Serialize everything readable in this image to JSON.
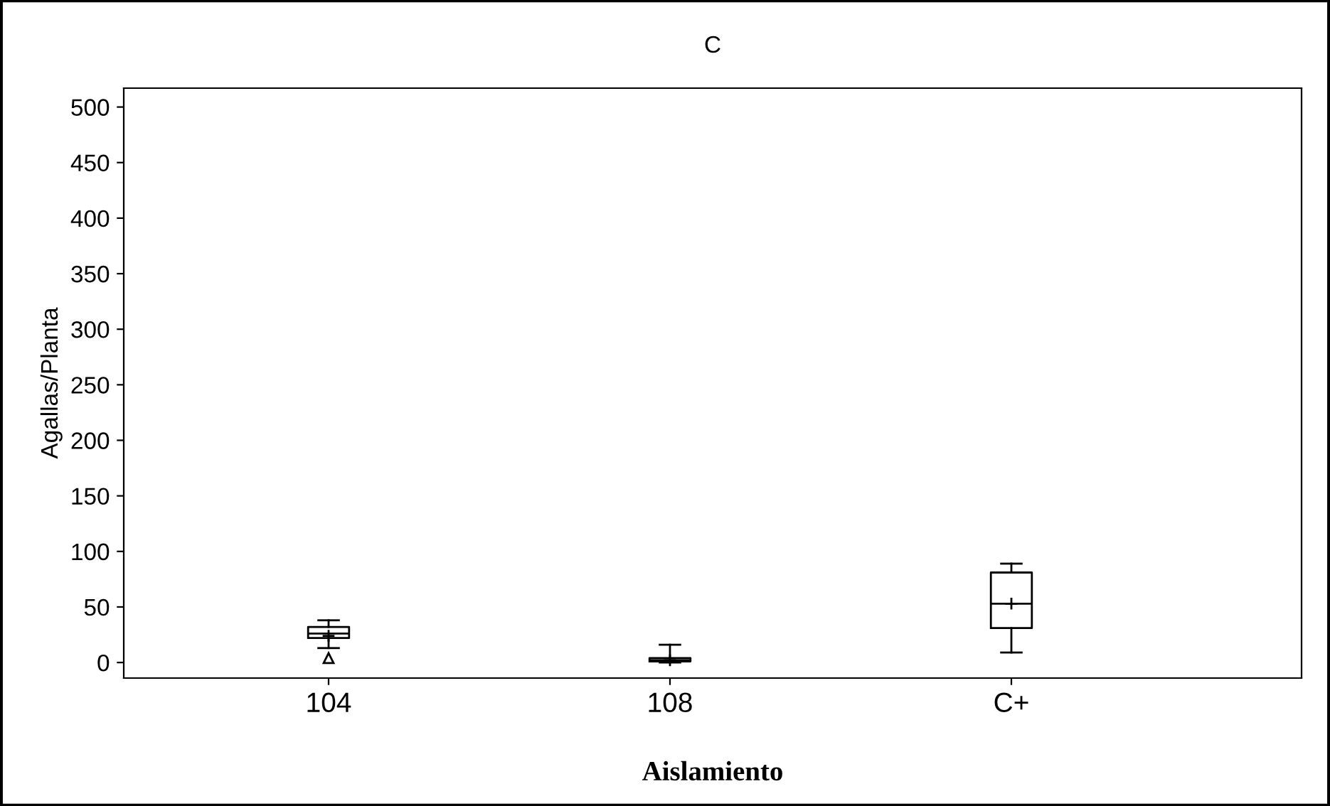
{
  "chart_data": {
    "type": "box",
    "title": "C",
    "xlabel": "Aislamiento",
    "ylabel": "Agallas/Planta",
    "categories": [
      "104",
      "108",
      "C+"
    ],
    "boxes": [
      {
        "low": 13,
        "q1": 22,
        "median": 26,
        "q3": 32,
        "high": 38,
        "mean": 24,
        "outliers": [
          4
        ]
      },
      {
        "low": 0,
        "q1": 1,
        "median": 2,
        "q3": 4,
        "high": 16,
        "mean": 2
      },
      {
        "low": 9,
        "q1": 31,
        "median": 53,
        "q3": 81,
        "high": 89,
        "mean": 53
      }
    ],
    "ylim": [
      -14,
      517
    ],
    "yticks": [
      0,
      50,
      100,
      150,
      200,
      250,
      300,
      350,
      400,
      450,
      500
    ],
    "grid": false,
    "color": "#000000"
  }
}
